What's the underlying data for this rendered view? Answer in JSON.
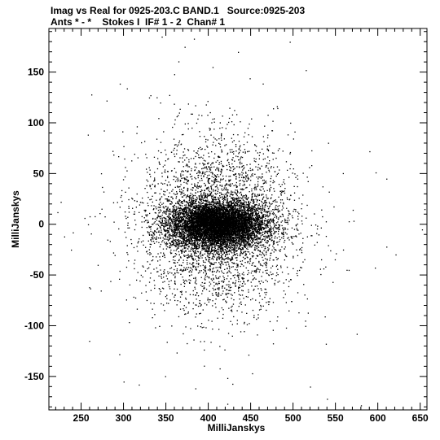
{
  "header": {
    "title_line1": "Imag vs Real for 0925-203.C BAND.1   Source:0925-203",
    "title_line2": "Ants * - *    Stokes I  IF# 1 - 2  Chan# 1"
  },
  "chart_data": {
    "type": "scatter",
    "xlabel": "MilliJanskys",
    "ylabel": "MilliJanskys",
    "xlim": [
      212,
      658
    ],
    "ylim": [
      -183,
      193
    ],
    "xticks": [
      250,
      300,
      350,
      400,
      450,
      500,
      550,
      600,
      650
    ],
    "yticks": [
      150,
      100,
      50,
      0,
      -50,
      -100,
      -150
    ],
    "grid": false,
    "point_color": "#000000",
    "distribution": {
      "description_center_x": 410,
      "center_y": 0,
      "core_sigma_x": 28,
      "core_sigma_y": 11,
      "halo_sigma_x": 45,
      "halo_sigma_y": 42,
      "x_range": [
        218,
        655
      ],
      "y_range": [
        -180,
        188
      ]
    },
    "sample_points": [
      [
        222,
        12
      ],
      [
        230,
        -12
      ],
      [
        238,
        -25
      ],
      [
        258,
        0
      ],
      [
        262,
        128
      ],
      [
        266,
        8
      ],
      [
        280,
        122
      ],
      [
        295,
        -128
      ],
      [
        300,
        -155
      ],
      [
        318,
        -158
      ],
      [
        330,
        125
      ],
      [
        345,
        185
      ],
      [
        372,
        175
      ],
      [
        383,
        183
      ],
      [
        405,
        155
      ],
      [
        435,
        170
      ],
      [
        470,
        108
      ],
      [
        515,
        152
      ],
      [
        520,
        -160
      ],
      [
        540,
        -172
      ],
      [
        575,
        -108
      ],
      [
        610,
        45
      ],
      [
        655,
        15
      ],
      [
        652,
        -5
      ],
      [
        610,
        -22
      ],
      [
        590,
        72
      ]
    ]
  }
}
